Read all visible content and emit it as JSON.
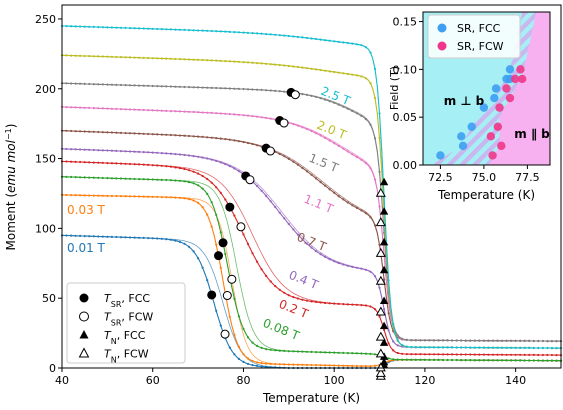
{
  "chart_data": [
    {
      "type": "line",
      "xlabel": "Temperature (K)",
      "ylabel_main": "Moment (",
      "ylabel_unit": "emu mol",
      "ylabel_exp": "−1",
      "ylabel_close": ")",
      "xlim": [
        40,
        150
      ],
      "ylim": [
        0,
        260
      ],
      "xticks": [
        40,
        60,
        80,
        100,
        120,
        140
      ],
      "yticks": [
        0,
        50,
        100,
        150,
        200,
        250
      ],
      "series": [
        {
          "name": "0.01 T",
          "color": "#1f77b4",
          "sr_fcc_T": 73.0,
          "sr_fcw_T": 75.5,
          "params": {
            "low": 95,
            "drop": 90,
            "Tc": 73.5,
            "w": 2.0,
            "slope": 0.1,
            "tail": 6,
            "bump": 0,
            "tailLabel": 2.0
          }
        },
        {
          "name": "0.03 T",
          "color": "#ff7f0e",
          "sr_fcc_T": 74.5,
          "sr_fcw_T": 76.0,
          "params": {
            "low": 124,
            "drop": 118,
            "Tc": 75.5,
            "w": 1.6,
            "slope": 0.07,
            "tail": 6,
            "bump": 0,
            "tailLabel": 4.0
          }
        },
        {
          "name": "0.08 T",
          "color": "#2ca02c",
          "sr_fcc_T": 75.5,
          "sr_fcw_T": 77.0,
          "params": {
            "low": 137,
            "drop": 120,
            "Tc": 76.5,
            "w": 1.8,
            "slope": 0.1,
            "tail": 6,
            "bump": 10,
            "tailLabel": 8.0
          }
        },
        {
          "name": "0.2 T",
          "color": "#d62728",
          "sr_fcc_T": 77.0,
          "sr_fcw_T": 79.0,
          "params": {
            "low": 148,
            "drop": 95,
            "Tc": 80.0,
            "w": 3.5,
            "slope": 0.12,
            "tail": 10,
            "bump": 10,
            "tailLabel": 18.0
          }
        },
        {
          "name": "0.4 T",
          "color": "#9467bd",
          "sr_fcc_T": 80.5,
          "sr_fcw_T": 81.0,
          "params": {
            "low": 157,
            "drop": 80,
            "Tc": 88.0,
            "w": 5.0,
            "slope": 0.12,
            "tail": 15,
            "bump": 20,
            "tailLabel": 30.0
          }
        },
        {
          "name": "0.7 T",
          "color": "#8c564b",
          "sr_fcc_T": 85.0,
          "sr_fcw_T": 85.5,
          "params": {
            "low": 170,
            "drop": 60,
            "Tc": 97.0,
            "w": 6.0,
            "slope": 0.12,
            "tail": 20,
            "bump": 35,
            "tailLabel": 48.0
          }
        },
        {
          "name": "1.1 T",
          "color": "#e377c2",
          "sr_fcc_T": 88.0,
          "sr_fcw_T": 88.5,
          "params": {
            "low": 187,
            "drop": 45,
            "Tc": 102.0,
            "w": 6.0,
            "slope": 0.12,
            "tail": 20,
            "bump": 50,
            "tailLabel": 70.0
          }
        },
        {
          "name": "1.5 T",
          "color": "#7f7f7f",
          "sr_fcc_T": 90.5,
          "sr_fcw_T": 91.0,
          "params": {
            "low": 204,
            "drop": 30,
            "Tc": 105.0,
            "w": 5.0,
            "slope": 0.1,
            "tail": 20,
            "bump": 60,
            "tailLabel": 90.0
          }
        },
        {
          "name": "2.0 T",
          "color": "#bcbd22",
          "sr_fcc_T": null,
          "sr_fcw_T": null,
          "params": {
            "low": 224,
            "drop": 12,
            "Tc": 100.0,
            "w": 8.0,
            "slope": 0.1,
            "tail": 15,
            "bump": 100,
            "tailLabel": 112.0
          }
        },
        {
          "name": "2.5 T",
          "color": "#17becf",
          "sr_fcc_T": null,
          "sr_fcw_T": null,
          "params": {
            "low": 245,
            "drop": 10,
            "Tc": 100.0,
            "w": 8.0,
            "slope": 0.1,
            "tail": 15,
            "bump": 110,
            "tailLabel": 133.0
          }
        }
      ],
      "tn_fcc_T": 111.0,
      "tn_fcw_T": 110.5,
      "legend": {
        "position": "lower-left",
        "entries": [
          {
            "sym": "T",
            "sub": "SR",
            "rest": ", FCC",
            "marker": "filled-circle"
          },
          {
            "sym": "T",
            "sub": "SR",
            "rest": ", FCW",
            "marker": "open-circle"
          },
          {
            "sym": "T",
            "sub": "N",
            "rest": ", FCC",
            "marker": "filled-triangle"
          },
          {
            "sym": "T",
            "sub": "N",
            "rest": ", FCW",
            "marker": "open-triangle"
          }
        ]
      }
    },
    {
      "type": "scatter",
      "xlabel": "Temperature (K)",
      "ylabel": "Field (T)",
      "xlim": [
        71.5,
        78.8
      ],
      "ylim": [
        0,
        0.16
      ],
      "xticks": [
        "72.5",
        "75.0",
        "77.5"
      ],
      "yticks": [
        "0.00",
        "0.05",
        "0.10",
        "0.15"
      ],
      "region_left_label": "m ⊥ b",
      "region_right_label": "m ∥ b",
      "colors": {
        "left_region": "#a6f0f5",
        "right_region": "#f7b0f0"
      },
      "series": [
        {
          "name": "SR, FCC",
          "color": "#3d9ef2",
          "points": [
            [
              72.5,
              0.01
            ],
            [
              73.8,
              0.02
            ],
            [
              73.7,
              0.03
            ],
            [
              74.3,
              0.04
            ],
            [
              75.0,
              0.06
            ],
            [
              75.6,
              0.07
            ],
            [
              75.7,
              0.08
            ],
            [
              76.3,
              0.09
            ],
            [
              76.5,
              0.09
            ],
            [
              76.5,
              0.1
            ]
          ]
        },
        {
          "name": "SR, FCW",
          "color": "#f0368a",
          "points": [
            [
              75.5,
              0.01
            ],
            [
              76.0,
              0.02
            ],
            [
              75.4,
              0.03
            ],
            [
              75.8,
              0.04
            ],
            [
              75.9,
              0.06
            ],
            [
              76.5,
              0.07
            ],
            [
              76.3,
              0.08
            ],
            [
              77.2,
              0.09
            ],
            [
              76.8,
              0.09
            ],
            [
              77.1,
              0.1
            ]
          ]
        }
      ]
    }
  ]
}
